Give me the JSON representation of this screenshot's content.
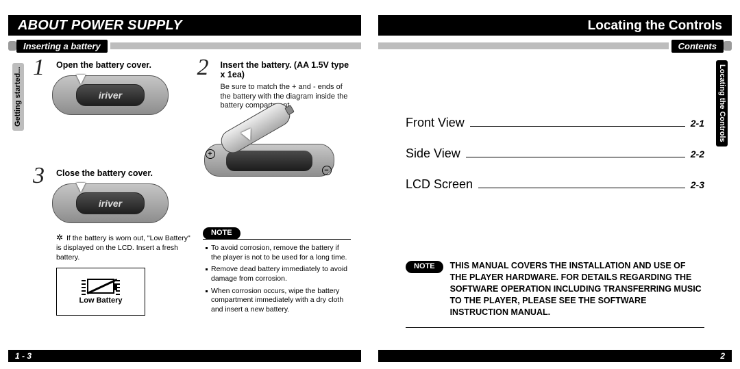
{
  "left": {
    "title": "ABOUT POWER SUPPLY",
    "subtitle": "Inserting a battery",
    "side_tab": "Getting started...",
    "steps": {
      "s1": {
        "num": "1",
        "title": "Open the battery cover."
      },
      "s2": {
        "num": "2",
        "title": "Insert the battery. (AA 1.5V type x 1ea)",
        "body": "Be sure to match the + and - ends of the battery with the diagram inside the battery compartment."
      },
      "s3": {
        "num": "3",
        "title": "Close the battery cover."
      }
    },
    "device_brand": "iriver",
    "plus": "+",
    "minus": "−",
    "footnote": "If the battery is worn out, \"Low Battery\" is displayed on the LCD. Insert a fresh battery.",
    "lowbatt_caption": "Low Battery",
    "note_label": "NOTE",
    "note_bullets": [
      "To avoid corrosion, remove the battery if the player is not to be used for a long time.",
      "Remove dead battery immediately to avoid damage from corrosion.",
      "When corrosion occurs, wipe the battery compartment immediately with a dry cloth and insert a new battery."
    ],
    "page_num": "1 - 3"
  },
  "right": {
    "title": "Locating the Controls",
    "subtitle": "Contents",
    "side_tab_a": "Locating the Controls",
    "contents": [
      {
        "label": "Front View",
        "page": "2-1"
      },
      {
        "label": "Side View",
        "page": "2-2"
      },
      {
        "label": "LCD Screen",
        "page": "2-3"
      }
    ],
    "note_label": "NOTE",
    "big_note": "THIS MANUAL COVERS THE INSTALLATION AND USE OF THE PLAYER HARDWARE. FOR DETAILS REGARDING THE SOFTWARE OPERATION INCLUDING TRANSFERRING MUSIC TO THE PLAYER, PLEASE SEE THE SOFTWARE INSTRUCTION MANUAL.",
    "page_num": "2"
  }
}
